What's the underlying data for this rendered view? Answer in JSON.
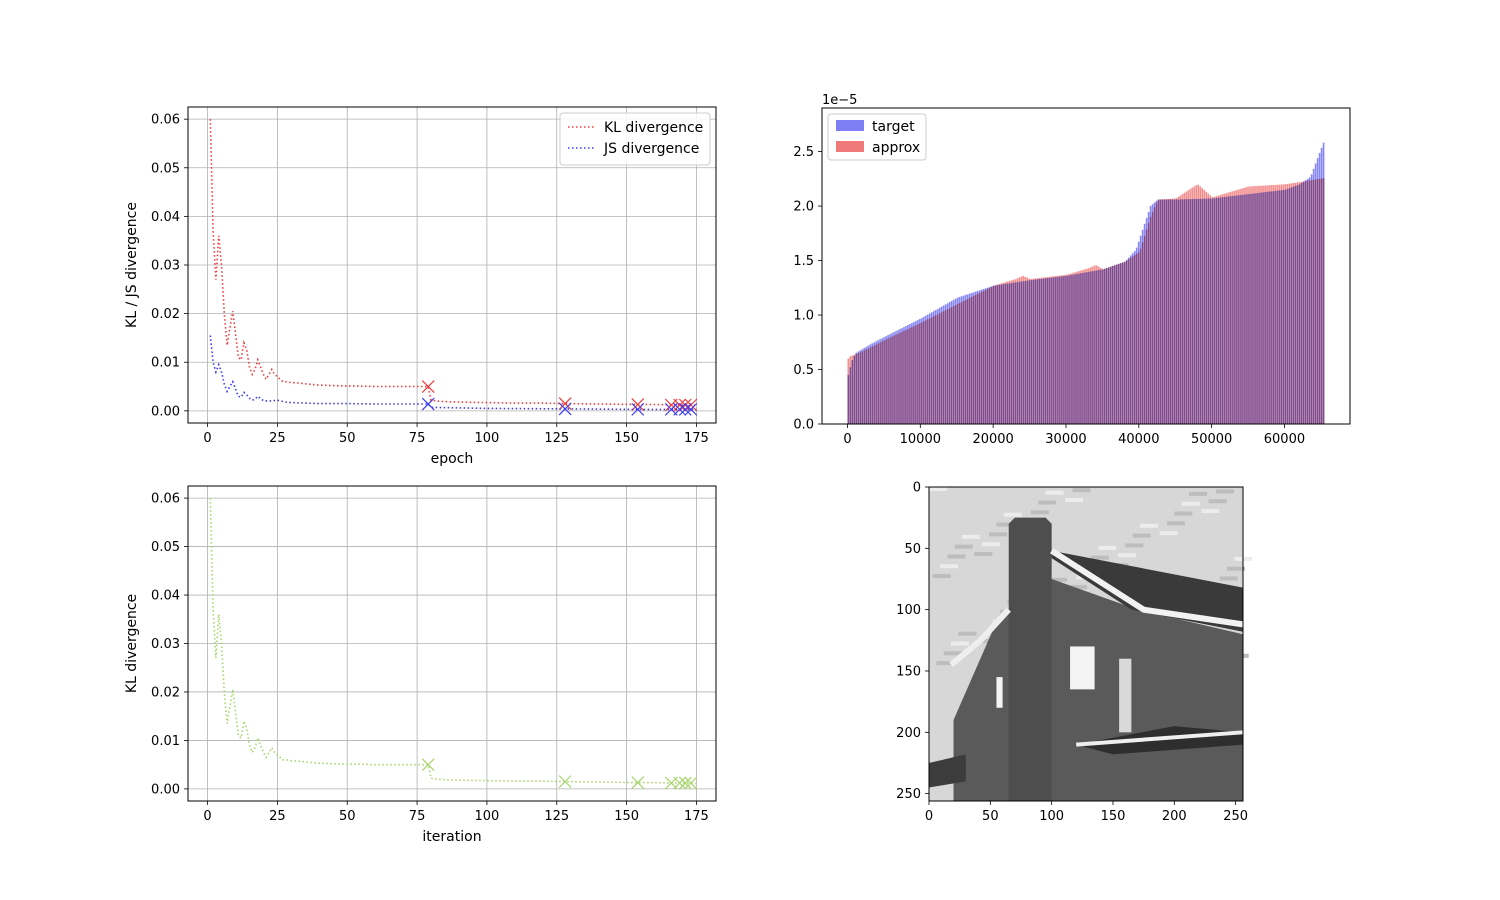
{
  "chart_data": [
    {
      "type": "line",
      "xlabel": "epoch",
      "ylabel": "KL / JS divergence",
      "xlim": [
        -7,
        182
      ],
      "ylim": [
        -0.0025,
        0.0625
      ],
      "xticks": [
        0,
        25,
        50,
        75,
        100,
        125,
        150,
        175
      ],
      "yticks": [
        0.0,
        0.01,
        0.02,
        0.03,
        0.04,
        0.05,
        0.06
      ],
      "ytick_labels": [
        "0.00",
        "0.01",
        "0.02",
        "0.03",
        "0.04",
        "0.05",
        "0.06"
      ],
      "grid": true,
      "legend": "top-right",
      "markers_x": [
        79,
        128,
        154,
        166,
        169,
        171,
        173
      ],
      "series": [
        {
          "name": "KL divergence",
          "color": "#f03b3b",
          "x": [
            1,
            2,
            3,
            4,
            5,
            6,
            7,
            8,
            9,
            10,
            11,
            12,
            13,
            14,
            15,
            16,
            17,
            18,
            19,
            20,
            21,
            22,
            23,
            24,
            25,
            26,
            27,
            28,
            30,
            33,
            36,
            40,
            45,
            50,
            55,
            60,
            65,
            70,
            75,
            79,
            80,
            82,
            85,
            90,
            100,
            110,
            120,
            128,
            140,
            154,
            160,
            166,
            169,
            171,
            173,
            175
          ],
          "y": [
            0.06,
            0.037,
            0.027,
            0.036,
            0.03,
            0.02,
            0.0135,
            0.017,
            0.0205,
            0.016,
            0.011,
            0.0105,
            0.014,
            0.0125,
            0.009,
            0.0075,
            0.0085,
            0.0105,
            0.009,
            0.0075,
            0.0065,
            0.0075,
            0.0085,
            0.0075,
            0.007,
            0.0065,
            0.006,
            0.006,
            0.0058,
            0.0057,
            0.0055,
            0.0053,
            0.0052,
            0.0051,
            0.0051,
            0.005,
            0.005,
            0.005,
            0.005,
            0.005,
            0.0022,
            0.002,
            0.0019,
            0.0018,
            0.0017,
            0.0016,
            0.0016,
            0.0015,
            0.0014,
            0.0013,
            0.0013,
            0.0012,
            0.0012,
            0.0012,
            0.0012,
            0.0011
          ]
        },
        {
          "name": "JS divergence",
          "color": "#3b3bf0",
          "x": [
            1,
            2,
            3,
            4,
            5,
            6,
            7,
            8,
            9,
            10,
            11,
            12,
            13,
            14,
            15,
            16,
            17,
            18,
            19,
            20,
            22,
            25,
            28,
            30,
            35,
            40,
            50,
            60,
            70,
            79,
            80,
            90,
            100,
            128,
            154,
            166,
            169,
            171,
            173,
            175
          ],
          "y": [
            0.0155,
            0.01,
            0.008,
            0.0095,
            0.008,
            0.0055,
            0.004,
            0.005,
            0.006,
            0.0045,
            0.003,
            0.0028,
            0.0038,
            0.0033,
            0.0026,
            0.0022,
            0.0024,
            0.003,
            0.0025,
            0.0021,
            0.002,
            0.0022,
            0.0018,
            0.0017,
            0.0016,
            0.0015,
            0.0015,
            0.0014,
            0.0014,
            0.0014,
            0.0007,
            0.0006,
            0.0005,
            0.0004,
            0.0003,
            0.0003,
            0.0003,
            0.0003,
            0.0003,
            0.0003
          ]
        }
      ]
    },
    {
      "type": "bar",
      "ylabel": "",
      "xlabel": "",
      "xlim": [
        -3500,
        69000
      ],
      "ylim": [
        0,
        2.9
      ],
      "xticks": [
        0,
        10000,
        20000,
        30000,
        40000,
        50000,
        60000
      ],
      "yticks": [
        0.0,
        0.5,
        1.0,
        1.5,
        2.0,
        2.5
      ],
      "ytick_labels": [
        "0.0",
        "0.5",
        "1.0",
        "1.5",
        "2.0",
        "2.5"
      ],
      "offset_text": "1e−5",
      "legend": "top-left",
      "target_curve_x": [
        0,
        500,
        1000,
        3000,
        5000,
        10000,
        15000,
        20000,
        25000,
        30000,
        35000,
        38000,
        39500,
        40500,
        41500,
        42500,
        45000,
        50000,
        55000,
        60000,
        62000,
        63500,
        64500,
        65535
      ],
      "target_curve_y": [
        0.45,
        0.58,
        0.65,
        0.73,
        0.8,
        0.97,
        1.16,
        1.27,
        1.32,
        1.36,
        1.42,
        1.49,
        1.6,
        1.8,
        2.0,
        2.06,
        2.06,
        2.07,
        2.11,
        2.15,
        2.2,
        2.27,
        2.45,
        2.63
      ],
      "approx_curve_x": [
        0,
        200,
        1000,
        3000,
        5000,
        10000,
        15000,
        20000,
        23000,
        24000,
        25000,
        30000,
        33000,
        34000,
        35000,
        38000,
        40000,
        41500,
        42500,
        45000,
        47000,
        48000,
        50000,
        55000,
        60000,
        62000,
        65535
      ],
      "approx_curve_y": [
        0.6,
        0.62,
        0.64,
        0.7,
        0.77,
        0.93,
        1.1,
        1.27,
        1.33,
        1.36,
        1.33,
        1.37,
        1.43,
        1.46,
        1.42,
        1.49,
        1.58,
        1.9,
        2.06,
        2.07,
        2.16,
        2.2,
        2.08,
        2.18,
        2.2,
        2.22,
        2.26
      ],
      "series": [
        {
          "name": "target",
          "color": "#7f7ff5"
        },
        {
          "name": "approx",
          "color": "#f07a7a"
        }
      ]
    },
    {
      "type": "line",
      "xlabel": "iteration",
      "ylabel": "KL divergence",
      "xlim": [
        -7,
        182
      ],
      "ylim": [
        -0.0025,
        0.0625
      ],
      "xticks": [
        0,
        25,
        50,
        75,
        100,
        125,
        150,
        175
      ],
      "yticks": [
        0.0,
        0.01,
        0.02,
        0.03,
        0.04,
        0.05,
        0.06
      ],
      "ytick_labels": [
        "0.00",
        "0.01",
        "0.02",
        "0.03",
        "0.04",
        "0.05",
        "0.06"
      ],
      "grid": true,
      "markers_x": [
        79,
        128,
        154,
        166,
        169,
        171,
        173
      ],
      "series": [
        {
          "color": "#a6d66a",
          "x": [
            1,
            2,
            3,
            4,
            5,
            6,
            7,
            8,
            9,
            10,
            11,
            12,
            13,
            14,
            15,
            16,
            17,
            18,
            19,
            20,
            21,
            22,
            23,
            24,
            25,
            26,
            27,
            28,
            30,
            33,
            36,
            40,
            45,
            50,
            55,
            60,
            65,
            70,
            75,
            79,
            80,
            82,
            85,
            90,
            100,
            110,
            120,
            128,
            140,
            154,
            160,
            166,
            169,
            171,
            173,
            175
          ],
          "y": [
            0.06,
            0.037,
            0.027,
            0.036,
            0.03,
            0.02,
            0.0135,
            0.017,
            0.0205,
            0.016,
            0.011,
            0.0105,
            0.014,
            0.0125,
            0.009,
            0.0075,
            0.0085,
            0.0105,
            0.009,
            0.0075,
            0.0065,
            0.0075,
            0.0085,
            0.0075,
            0.007,
            0.0065,
            0.006,
            0.006,
            0.0058,
            0.0057,
            0.0055,
            0.0053,
            0.0052,
            0.0051,
            0.0051,
            0.005,
            0.005,
            0.005,
            0.005,
            0.005,
            0.0022,
            0.002,
            0.0019,
            0.0018,
            0.0017,
            0.0016,
            0.0016,
            0.0015,
            0.0014,
            0.0013,
            0.0013,
            0.0012,
            0.0012,
            0.0012,
            0.0012,
            0.0011
          ]
        }
      ]
    },
    {
      "type": "heatmap",
      "xlim": [
        0,
        256
      ],
      "ylim": [
        256,
        0
      ],
      "xticks": [
        0,
        50,
        100,
        150,
        200,
        250
      ],
      "yticks": [
        0,
        50,
        100,
        150,
        200,
        250
      ],
      "colormap": "gray"
    }
  ]
}
